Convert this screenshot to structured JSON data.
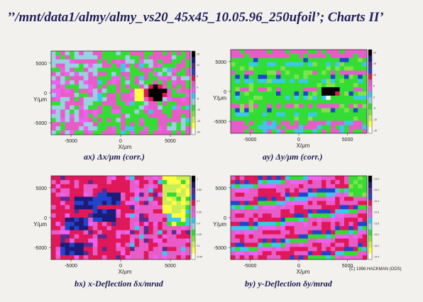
{
  "page": {
    "title": "’’/mnt/data1/almy/almy_vs20_45x45_10.05.96_250ufoil’; Charts II’",
    "credit": "(C) 1996 HACKMAN (ODS)"
  },
  "colors": {
    "bg": "#f3f1ee",
    "ramp": [
      "#000000",
      "#1c1c78",
      "#5a2a8c",
      "#2244cc",
      "#e0185a",
      "#e85cc8",
      "#f060f0",
      "#3cc8e8",
      "#9ad0e0",
      "#33dd33",
      "#7ee24a",
      "#ccee55",
      "#ffff44",
      "#ffffff"
    ]
  },
  "chart_data": [
    {
      "type": "heatmap",
      "id": "ax",
      "caption": "ax) Δx/μm (corr.)",
      "xlabel": "X/μm",
      "ylabel": "Y/μm",
      "xticks": [
        "-5000",
        "0",
        "5000"
      ],
      "yticks": [
        "5000",
        "0",
        "-5000"
      ],
      "xlim": [
        -7000,
        7000
      ],
      "ylim": [
        -7000,
        7000
      ],
      "colorscale": [
        "15",
        "10",
        "5",
        "0",
        "-5",
        "-10",
        "-15",
        "-20"
      ],
      "grid": "30x20",
      "pattern": "mostly green/magenta mix, grey dots left, black-white cluster near (2500,0)"
    },
    {
      "type": "heatmap",
      "id": "ay",
      "caption": "ay) Δy/μm (corr.)",
      "xlabel": "X/μm",
      "ylabel": "Y/μm",
      "xticks": [
        "-5000",
        "0",
        "5000"
      ],
      "yticks": [
        "5000",
        "0",
        "-5000"
      ],
      "xlim": [
        -7000,
        7000
      ],
      "ylim": [
        -7000,
        7000
      ],
      "colorscale": [
        "20",
        "15",
        "10",
        "5",
        "0",
        "-5",
        "-10",
        "-15"
      ],
      "grid": "30x20",
      "pattern": "green background with magenta/blue horizontal bands, black-white cluster near (4000,0)"
    },
    {
      "type": "heatmap",
      "id": "bx",
      "caption": "bx) x-Deflection δx/mrad",
      "xlabel": "X/μm",
      "ylabel": "Y/μm",
      "xticks": [
        "-5000",
        "0",
        "5000"
      ],
      "yticks": [
        "5000",
        "0",
        "-5000"
      ],
      "xlim": [
        -7000,
        7000
      ],
      "ylim": [
        -7000,
        7000
      ],
      "colorscale": [
        "1",
        "0.85",
        "0.7",
        "0.55",
        "0.4",
        "0.25",
        "0.1",
        "-0.05"
      ],
      "grid": "30x20",
      "pattern": "red/magenta dominated with dark blue patches left, yellow-green top-right corner"
    },
    {
      "type": "heatmap",
      "id": "by",
      "caption": "by) y-Deflection δy/mrad",
      "xlabel": "X/μm",
      "ylabel": "Y/μm",
      "xticks": [
        "-5000",
        "0",
        "5000"
      ],
      "yticks": [
        "5000",
        "0",
        "-5000"
      ],
      "xlim": [
        -7000,
        7000
      ],
      "ylim": [
        -7000,
        7000
      ],
      "colorscale": [
        "-13.0",
        "-13.2",
        "-13.4",
        "-13.6",
        "-13.8",
        "-14.0",
        "-14.2",
        "-14.4"
      ],
      "grid": "30x20",
      "pattern": "diagonal magenta/red/blue/green stripes descending to the right"
    }
  ]
}
